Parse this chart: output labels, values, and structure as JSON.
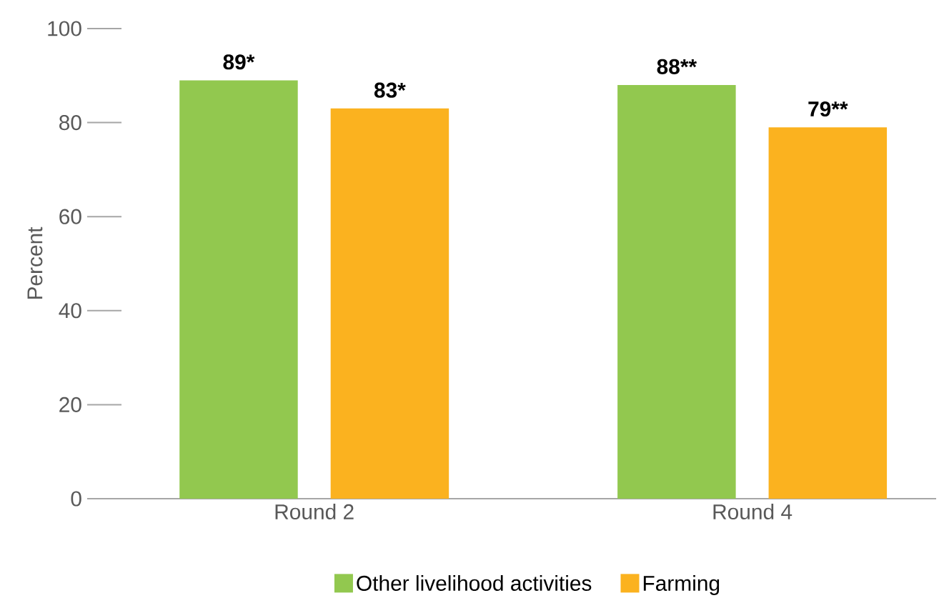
{
  "chart_data": {
    "type": "bar",
    "ylabel": "Percent",
    "categories": [
      "Round 2",
      "Round 4"
    ],
    "series": [
      {
        "name": "Other livelihood activities",
        "color": "#92c84f",
        "values": [
          89,
          88
        ],
        "value_labels": [
          "89*",
          "88**"
        ]
      },
      {
        "name": "Farming",
        "color": "#fbb21f",
        "values": [
          83,
          79
        ],
        "value_labels": [
          "83*",
          "79**"
        ]
      }
    ],
    "ylim": [
      0,
      100
    ],
    "yticks": [
      0,
      20,
      40,
      60,
      80,
      100
    ],
    "grid": false,
    "legend": "bottom"
  }
}
